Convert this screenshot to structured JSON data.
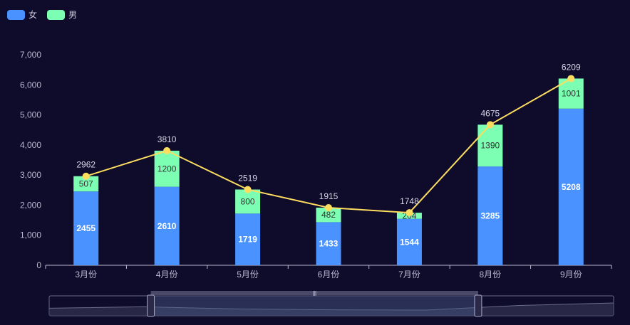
{
  "chart_data": {
    "type": "bar",
    "stacked": true,
    "categories": [
      "3月份",
      "4月份",
      "5月份",
      "6月份",
      "7月份",
      "8月份",
      "9月份"
    ],
    "series": [
      {
        "name": "女",
        "type": "bar",
        "color": "#4992ff",
        "values": [
          2455,
          2610,
          1719,
          1433,
          1544,
          3285,
          5208
        ]
      },
      {
        "name": "男",
        "type": "bar",
        "color": "#7cffb2",
        "values": [
          507,
          1200,
          800,
          482,
          204,
          1390,
          1001
        ]
      }
    ],
    "total_line": {
      "type": "line",
      "color": "#fddd60",
      "values": [
        2962,
        3810,
        2519,
        1915,
        1748,
        4675,
        6209
      ]
    },
    "y_ticks": [
      "0",
      "1,000",
      "2,000",
      "3,000",
      "4,000",
      "5,000",
      "6,000",
      "7,000"
    ],
    "ylim": [
      0,
      7000
    ],
    "legend_position": "top-left",
    "grid": false,
    "data_zoom": {
      "start": 0.18,
      "end": 0.76
    }
  }
}
